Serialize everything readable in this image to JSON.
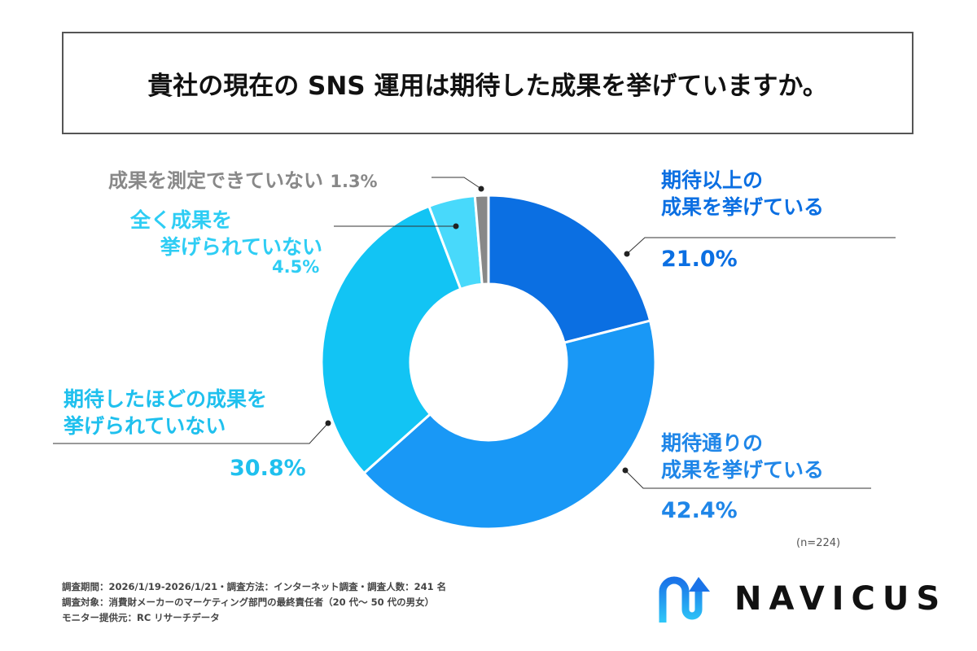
{
  "title": "貴社の現在の SNS 運用は期待した成果を挙げていますか。",
  "chart_data": {
    "type": "pie",
    "donut": true,
    "title": "貴社の現在の SNS 運用は期待した成果を挙げていますか。",
    "categories": [
      "期待以上の成果を挙げている",
      "期待通りの成果を挙げている",
      "期待したほどの成果を挙げられていない",
      "全く成果を挙げられていない",
      "成果を測定できていない"
    ],
    "values": [
      21.0,
      42.4,
      30.8,
      4.5,
      1.3
    ],
    "colors": [
      "#0b6fe2",
      "#1998f6",
      "#12c4f4",
      "#48d9fb",
      "#888888"
    ],
    "labels": [
      {
        "lines": [
          "期待以上の",
          "成果を挙げている"
        ],
        "pct": "21.0%",
        "color": "#0b6fe2"
      },
      {
        "lines": [
          "期待通りの",
          "成果を挙げている"
        ],
        "pct": "42.4%",
        "color": "#1f86e8"
      },
      {
        "lines": [
          "期待したほどの成果を",
          "挙げられていない"
        ],
        "pct": "30.8%",
        "color": "#1fc0ee"
      },
      {
        "lines": [
          "全く成果を",
          "挙げられていない"
        ],
        "pct": "4.5%",
        "color": "#2ecdf4"
      },
      {
        "lines": [
          "成果を測定できていない"
        ],
        "pct": "1.3%",
        "color": "#888888"
      }
    ],
    "n": "(n=224)"
  },
  "footer": [
    "調査期間：2026/1/19-2026/1/21・調査方法：インターネット調査・調査人数：241 名",
    "調査対象：消費財メーカーのマーケティング部門の最終責任者（20 代～ 50 代の男女）",
    "モニター提供元：RC リサーチデータ"
  ],
  "logo": {
    "text": "NAVICUS",
    "colors": [
      "#1a73e8",
      "#2ec8f8"
    ]
  }
}
